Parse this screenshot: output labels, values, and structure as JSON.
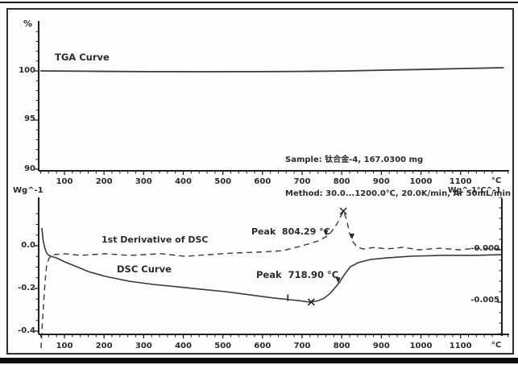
{
  "figure": {
    "background": "#fdfdfc",
    "border_color": "#2e2e2e",
    "accent_color": "#1c1c1c"
  },
  "top_panel": {
    "y_axis_unit": "%",
    "curve_label": "TGA Curve",
    "y_tick_labels": [
      "100",
      "95",
      "90"
    ],
    "sample_line": "Sample: 钛合金-4, 167.0300 mg",
    "method_line": "Method: 30.0...1200.0℃, 20.0K/min, Ar 50mL/min"
  },
  "bottom_panel": {
    "left_axis_unit": "Wg^-1",
    "right_axis_unit": "Wg^-1°C^-1",
    "left_tick_labels": [
      "0.0",
      "-0.2",
      "-0.4"
    ],
    "right_tick_labels": [
      "-0.000",
      "-0.005"
    ],
    "derivative_label": "1st Derivative of DSC",
    "dsc_label": "DSC Curve",
    "peak_derivative_label": "Peak  804.29 °C",
    "peak_dsc_label": "Peak  718.90 °C"
  },
  "x_axis": {
    "unit": "°C",
    "major_ticks": [
      100,
      200,
      300,
      400,
      500,
      600,
      700,
      800,
      900,
      1000,
      1100
    ],
    "minor_step": 20,
    "range": [
      35,
      1222
    ]
  },
  "chart_data": [
    {
      "type": "line",
      "name": "TGA Curve",
      "axis": "tga",
      "style": "solid",
      "xlabel": "°C",
      "ylabel": "%",
      "ylim": [
        90,
        105
      ],
      "x": [
        39,
        150,
        300,
        450,
        600,
        700,
        800,
        900,
        1000,
        1100,
        1160,
        1209
      ],
      "y": [
        100.0,
        99.97,
        99.93,
        99.92,
        99.93,
        99.95,
        99.99,
        100.07,
        100.15,
        100.24,
        100.29,
        100.33
      ]
    },
    {
      "type": "line",
      "name": "DSC Curve",
      "axis": "dsc",
      "style": "solid",
      "xlabel": "°C",
      "ylabel": "Wg^-1",
      "ylim": [
        -0.4,
        0.2
      ],
      "peak_temperature_c": 718.9,
      "x": [
        43,
        46,
        49,
        52,
        55,
        60,
        66,
        80,
        100,
        131,
        161,
        202,
        263,
        324,
        385,
        446,
        507,
        568,
        629,
        670,
        700,
        719,
        740,
        755,
        771,
        792,
        808,
        822,
        842,
        873,
        914,
        975,
        1056,
        1137,
        1203
      ],
      "y": [
        0.083,
        0.03,
        0.0,
        -0.02,
        -0.034,
        -0.044,
        -0.049,
        -0.057,
        -0.075,
        -0.098,
        -0.121,
        -0.143,
        -0.166,
        -0.181,
        -0.192,
        -0.204,
        -0.215,
        -0.23,
        -0.245,
        -0.253,
        -0.259,
        -0.264,
        -0.258,
        -0.246,
        -0.223,
        -0.177,
        -0.132,
        -0.098,
        -0.079,
        -0.064,
        -0.057,
        -0.049,
        -0.045,
        -0.045,
        -0.042
      ]
    },
    {
      "type": "line",
      "name": "1st Derivative of DSC",
      "axis": "deriv",
      "style": "dashed",
      "xlabel": "°C",
      "ylabel": "Wg^-1°C^-1",
      "ylim": [
        -0.008,
        0.005
      ],
      "peak_temperature_c": 804.29,
      "x": [
        41,
        43,
        47,
        51,
        55,
        61,
        72,
        100,
        141,
        202,
        263,
        344,
        405,
        466,
        527,
        588,
        649,
        700,
        741,
        767,
        788,
        800,
        804,
        812,
        820,
        828,
        838,
        853,
        883,
        914,
        954,
        995,
        1046,
        1097,
        1137,
        1178,
        1203
      ],
      "y": [
        -0.0094,
        -0.0077,
        -0.0054,
        -0.0031,
        -0.0015,
        -0.0008,
        -0.00046,
        -0.00038,
        -0.00054,
        -0.00038,
        -0.00054,
        -0.00038,
        -0.00062,
        -0.00046,
        -0.00031,
        -0.00023,
        -0.0001,
        0.00038,
        0.00085,
        0.00138,
        0.00246,
        0.00338,
        0.00369,
        0.00292,
        0.00154,
        0.00077,
        0.00031,
        8e-05,
        0.00023,
        8e-05,
        0.00023,
        0.0,
        0.00015,
        0.0,
        0.00015,
        8e-05,
        8e-05
      ]
    }
  ],
  "markers": [
    {
      "glyph": "x",
      "axis": "dsc",
      "t": 723,
      "v": -0.2635,
      "meaning": "DSC peak marker"
    },
    {
      "glyph": "x",
      "axis": "deriv",
      "t": 804,
      "v": 0.00369,
      "meaning": "derivative peak marker"
    },
    {
      "glyph": "tick",
      "axis": "dsc",
      "t": 664,
      "v": -0.247,
      "meaning": "evaluation range start"
    },
    {
      "glyph": "arrow",
      "axis": "dsc",
      "t": 791,
      "v": -0.175,
      "meaning": "evaluation range end"
    },
    {
      "glyph": "arrow",
      "axis": "deriv",
      "t": 760,
      "v": 0.00135,
      "meaning": "peak search start"
    },
    {
      "glyph": "arrow",
      "axis": "deriv",
      "t": 826,
      "v": 0.001,
      "meaning": "peak search end"
    }
  ]
}
